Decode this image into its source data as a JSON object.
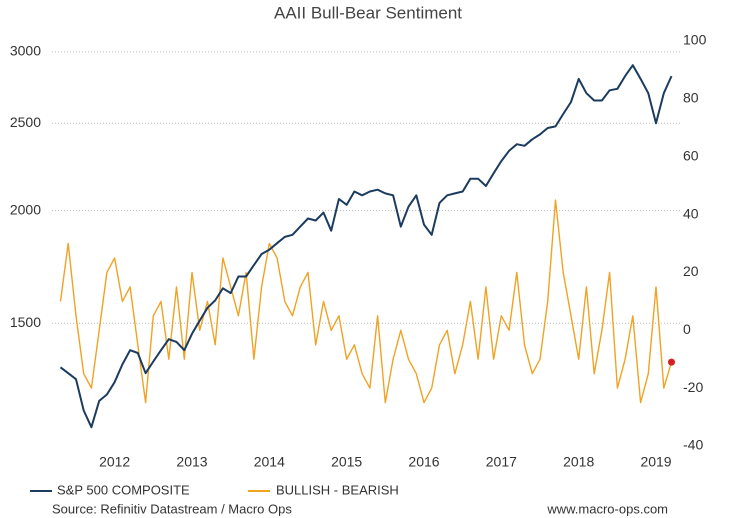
{
  "chart_data": {
    "type": "line",
    "title": "AAII Bull-Bear Sentiment",
    "source": "Source: Refinitiv Datastream / Macro Ops",
    "website": "www.macro-ops.com",
    "x": [
      2011.3,
      2011.4,
      2011.5,
      2011.6,
      2011.7,
      2011.8,
      2011.9,
      2012.0,
      2012.1,
      2012.2,
      2012.3,
      2012.4,
      2012.5,
      2012.6,
      2012.7,
      2012.8,
      2012.9,
      2013.0,
      2013.1,
      2013.2,
      2013.3,
      2013.4,
      2013.5,
      2013.6,
      2013.7,
      2013.8,
      2013.9,
      2014.0,
      2014.1,
      2014.2,
      2014.3,
      2014.4,
      2014.5,
      2014.6,
      2014.7,
      2014.8,
      2014.9,
      2015.0,
      2015.1,
      2015.2,
      2015.3,
      2015.4,
      2015.5,
      2015.6,
      2015.7,
      2015.8,
      2015.9,
      2016.0,
      2016.1,
      2016.2,
      2016.3,
      2016.4,
      2016.5,
      2016.6,
      2016.7,
      2016.8,
      2016.9,
      2017.0,
      2017.1,
      2017.2,
      2017.3,
      2017.4,
      2017.5,
      2017.6,
      2017.7,
      2017.8,
      2017.9,
      2018.0,
      2018.1,
      2018.2,
      2018.3,
      2018.4,
      2018.5,
      2018.6,
      2018.7,
      2018.8,
      2018.9,
      2019.0,
      2019.1,
      2019.2
    ],
    "series": [
      {
        "name": "S&P 500 COMPOSITE",
        "color": "#1b3b5f",
        "axis": "y",
        "values": [
          1340,
          1320,
          1300,
          1200,
          1150,
          1230,
          1250,
          1290,
          1350,
          1400,
          1390,
          1320,
          1360,
          1400,
          1440,
          1430,
          1400,
          1460,
          1510,
          1560,
          1590,
          1640,
          1620,
          1690,
          1690,
          1740,
          1790,
          1810,
          1840,
          1870,
          1880,
          1920,
          1960,
          1950,
          1990,
          1900,
          2060,
          2030,
          2100,
          2080,
          2100,
          2110,
          2090,
          2080,
          1920,
          2020,
          2080,
          1930,
          1880,
          2040,
          2080,
          2090,
          2100,
          2170,
          2170,
          2130,
          2200,
          2270,
          2330,
          2370,
          2360,
          2400,
          2430,
          2470,
          2480,
          2560,
          2640,
          2800,
          2700,
          2650,
          2650,
          2720,
          2730,
          2820,
          2900,
          2800,
          2700,
          2500,
          2700,
          2820
        ]
      },
      {
        "name": "BULLISH - BEARISH",
        "color": "#f0a224",
        "axis": "y2",
        "values": [
          10,
          30,
          5,
          -15,
          -20,
          0,
          20,
          25,
          10,
          15,
          -5,
          -25,
          5,
          10,
          -10,
          15,
          -10,
          20,
          0,
          10,
          -5,
          25,
          15,
          5,
          20,
          -10,
          15,
          30,
          25,
          10,
          5,
          15,
          20,
          -5,
          10,
          0,
          5,
          -10,
          -5,
          -15,
          -20,
          5,
          -25,
          -10,
          0,
          -10,
          -15,
          -25,
          -20,
          -5,
          0,
          -15,
          -5,
          10,
          -10,
          15,
          -10,
          5,
          0,
          20,
          -5,
          -15,
          -10,
          10,
          45,
          20,
          5,
          -10,
          15,
          -15,
          0,
          20,
          -20,
          -10,
          5,
          -25,
          -15,
          15,
          -20,
          -11
        ]
      }
    ],
    "last_point_color": "#d42020",
    "xlim": [
      2011.19,
      2019.31
    ],
    "xticks": [
      2012,
      2013,
      2014,
      2015,
      2016,
      2017,
      2018,
      2019
    ],
    "ylim": [
      1096,
      3085
    ],
    "yticks": [
      1500,
      2000,
      2500,
      3000
    ],
    "log_y": true,
    "y2lim": [
      -40,
      100
    ],
    "y2ticks": [
      -40,
      -20,
      0,
      20,
      40,
      60,
      80,
      100
    ],
    "grid": true
  }
}
